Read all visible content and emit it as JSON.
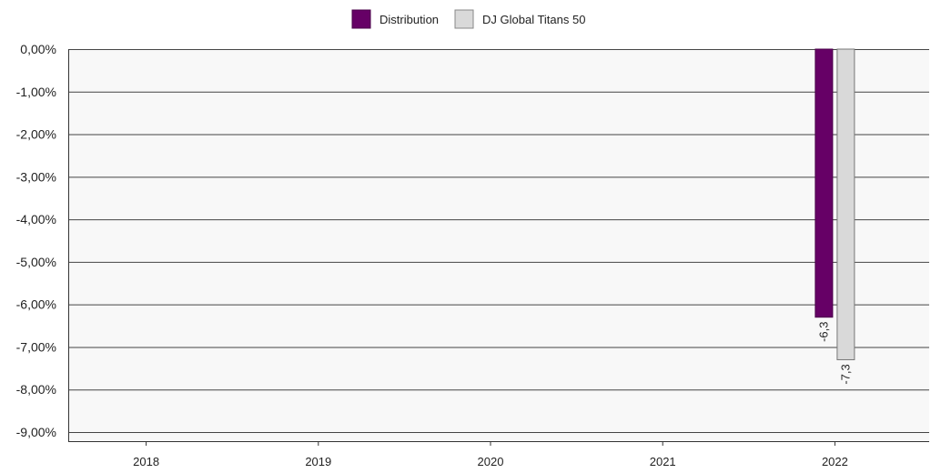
{
  "chart_data": {
    "type": "bar",
    "categories": [
      "2018",
      "2019",
      "2020",
      "2021",
      "2022"
    ],
    "series": [
      {
        "name": "Distribution",
        "values": [
          null,
          null,
          null,
          null,
          -6.3
        ],
        "color": "#660066",
        "labels": [
          "",
          "",
          "",
          "",
          "-6,3"
        ]
      },
      {
        "name": "DJ Global Titans 50",
        "values": [
          null,
          null,
          null,
          null,
          -7.3
        ],
        "color": "#d9d9d9",
        "labels": [
          "",
          "",
          "",
          "",
          "-7,3"
        ]
      }
    ],
    "ylim": [
      -9,
      0
    ],
    "yticks": [
      0,
      -1,
      -2,
      -3,
      -4,
      -5,
      -6,
      -7,
      -8,
      -9
    ],
    "ytick_labels": [
      "0,00%",
      "-1,00%",
      "-2,00%",
      "-3,00%",
      "-4,00%",
      "-5,00%",
      "-6,00%",
      "-7,00%",
      "-8,00%",
      "-9,00%"
    ],
    "grid": true,
    "legend_position": "top-center",
    "plot_background": "#f8f8f8",
    "title": "",
    "xlabel": "",
    "ylabel": ""
  }
}
